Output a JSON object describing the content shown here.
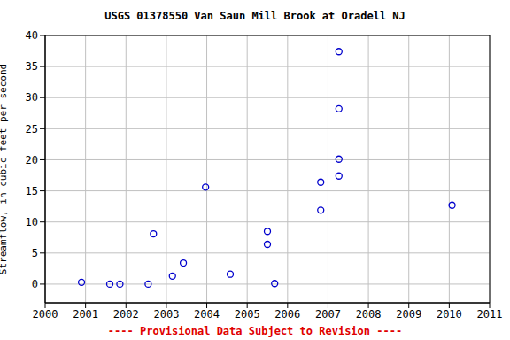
{
  "chart_data": {
    "type": "scatter",
    "title": "USGS 01378550 Van Saun Mill Brook at Oradell NJ",
    "y_label": "Streamflow, in cubic feet per second",
    "footer": "---- Provisional Data Subject to Revision ----",
    "footer_color": "#e00000",
    "x": [
      2000.9,
      2001.6,
      2001.85,
      2002.55,
      2002.68,
      2003.15,
      2003.42,
      2003.97,
      2004.58,
      2005.5,
      2005.5,
      2005.68,
      2006.82,
      2006.82,
      2007.27,
      2007.27,
      2007.27,
      2007.27,
      2010.07
    ],
    "values": [
      0.3,
      0.0,
      0.0,
      0.0,
      8.1,
      1.3,
      3.4,
      15.6,
      1.6,
      8.5,
      6.4,
      0.1,
      16.4,
      11.9,
      37.4,
      28.2,
      20.1,
      17.4,
      12.7
    ],
    "color": "#0000cc",
    "marker": "open circle",
    "xlim": [
      2000,
      2011
    ],
    "xticks": [
      2000,
      2001,
      2002,
      2003,
      2004,
      2005,
      2006,
      2007,
      2008,
      2009,
      2010,
      2011
    ],
    "ylim": [
      -3,
      40
    ],
    "yticks": [
      0,
      5,
      10,
      15,
      20,
      25,
      30,
      35,
      40
    ],
    "grid": true
  }
}
